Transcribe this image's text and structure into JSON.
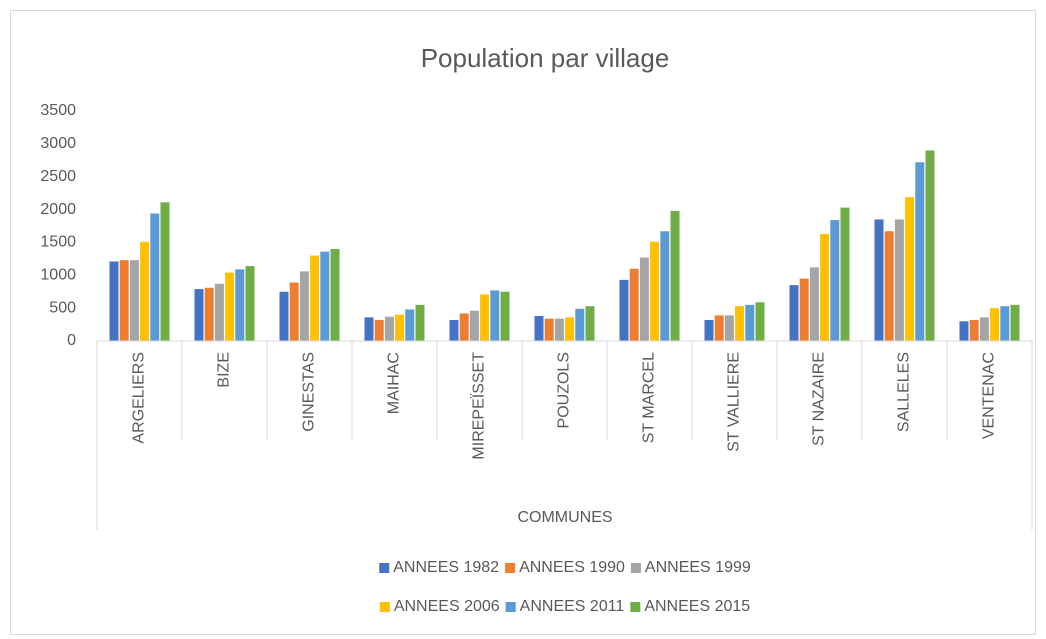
{
  "chart_data": {
    "type": "bar",
    "title": "Population par village",
    "x_label": "COMMUNES",
    "categories": [
      "ARGELIERS",
      "BIZE",
      "GINESTAS",
      "MAIHAC",
      "MIREPEÏSSET",
      "POUZOLS",
      "ST MARCEL",
      "ST VALLIERE",
      "ST NAZAIRE",
      "SALLELES",
      "VENTENAC"
    ],
    "series": [
      {
        "name": "ANNEES 1982",
        "color": "#4472c4",
        "values": [
          1210,
          790,
          750,
          360,
          320,
          380,
          930,
          320,
          850,
          1850,
          300
        ]
      },
      {
        "name": "ANNEES 1990",
        "color": "#ed7d31",
        "values": [
          1230,
          810,
          890,
          320,
          420,
          340,
          1100,
          390,
          950,
          1670,
          320
        ]
      },
      {
        "name": "ANNEES 1999",
        "color": "#a5a5a5",
        "values": [
          1230,
          870,
          1060,
          370,
          460,
          340,
          1270,
          390,
          1120,
          1850,
          360
        ]
      },
      {
        "name": "ANNEES 2006",
        "color": "#ffc000",
        "values": [
          1510,
          1040,
          1300,
          400,
          710,
          360,
          1510,
          530,
          1630,
          2190,
          500
        ]
      },
      {
        "name": "ANNEES 2011",
        "color": "#5b9bd5",
        "values": [
          1940,
          1090,
          1360,
          480,
          770,
          490,
          1670,
          550,
          1840,
          2720,
          530
        ]
      },
      {
        "name": "ANNEES 2015",
        "color": "#70ad47",
        "values": [
          2110,
          1140,
          1400,
          550,
          750,
          530,
          1980,
          590,
          2030,
          2900,
          550
        ]
      }
    ],
    "ylim": [
      0,
      3500
    ],
    "yticks": [
      0,
      500,
      1000,
      1500,
      2000,
      2500,
      3000,
      3500
    ],
    "grid": false
  }
}
